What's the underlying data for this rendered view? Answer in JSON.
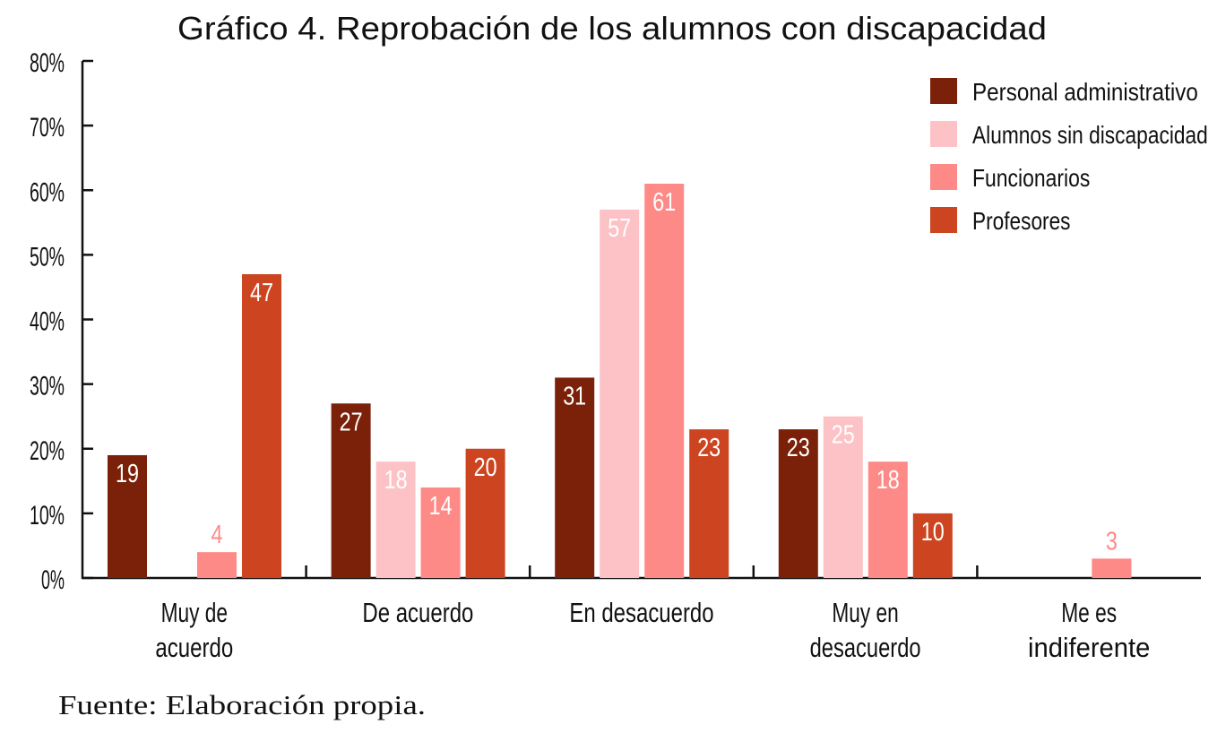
{
  "chart_data": {
    "type": "bar",
    "title": "Gráfico 4. Reprobación de los alumnos con discapacidad",
    "xlabel": "",
    "ylabel": "",
    "ylim": [
      0,
      80
    ],
    "yticks": [
      "0%",
      "10%",
      "20%",
      "30%",
      "40%",
      "50%",
      "60%",
      "70%",
      "80%"
    ],
    "ytick_values": [
      0,
      10,
      20,
      30,
      40,
      50,
      60,
      70,
      80
    ],
    "categories": [
      [
        "Muy de",
        "acuerdo"
      ],
      [
        "De acuerdo"
      ],
      [
        "En desacuerdo"
      ],
      [
        "Muy en",
        "desacuerdo"
      ],
      [
        "Me es",
        "indiferente"
      ]
    ],
    "series": [
      {
        "name": "Personal administrativo",
        "color": "#7b2109",
        "values": [
          19,
          27,
          31,
          23,
          null
        ]
      },
      {
        "name": "Alumnos sin discapacidad",
        "color": "#fcc2c6",
        "values": [
          null,
          18,
          57,
          25,
          null
        ]
      },
      {
        "name": "Funcionarios",
        "color": "#fd8a87",
        "values": [
          4,
          14,
          61,
          18,
          3
        ]
      },
      {
        "name": "Profesores",
        "color": "#cc4520",
        "values": [
          47,
          20,
          23,
          10,
          null
        ]
      }
    ],
    "grid": false,
    "legend_position": "top-right",
    "source": "Fuente: Elaboración propia."
  }
}
